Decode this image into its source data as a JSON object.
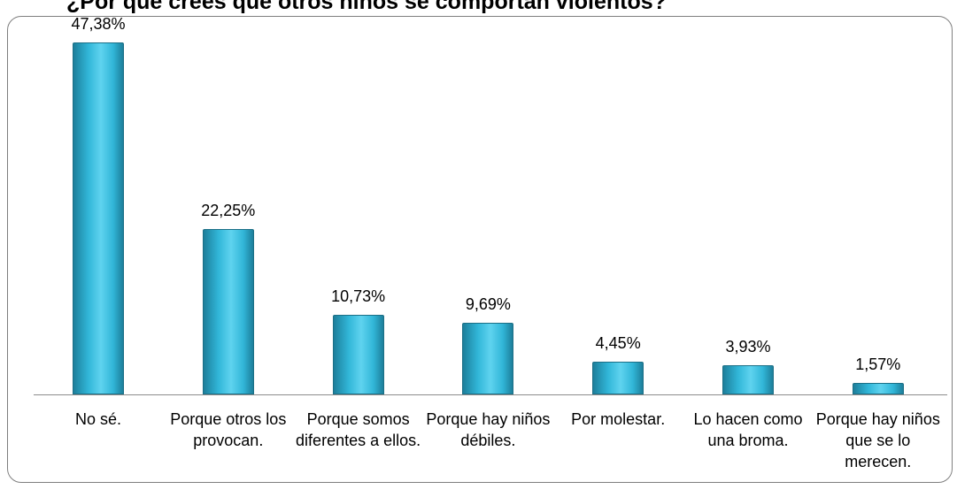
{
  "chart_data": {
    "type": "bar",
    "title": "¿Por qué crees que otros niños se comportan violentos?",
    "categories": [
      "No sé.",
      "Porque otros los provocan.",
      "Porque somos diferentes a ellos.",
      "Porque hay niños débiles.",
      "Por molestar.",
      "Lo hacen como una broma.",
      "Porque hay niños que se lo merecen."
    ],
    "values": [
      47.38,
      22.25,
      10.73,
      9.69,
      4.45,
      3.93,
      1.57
    ],
    "value_labels": [
      "47,38%",
      "22,25%",
      "10,73%",
      "9,69%",
      "4,45%",
      "3,93%",
      "1,57%"
    ],
    "color": "#31b6d8"
  }
}
